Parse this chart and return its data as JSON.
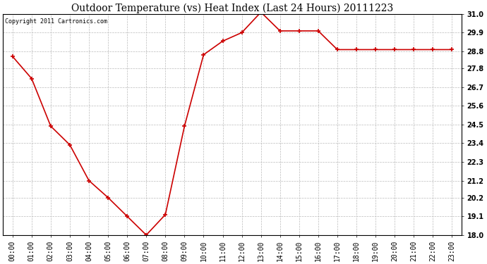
{
  "title": "Outdoor Temperature (vs) Heat Index (Last 24 Hours) 20111223",
  "copyright_text": "Copyright 2011 Cartronics.com",
  "x_labels": [
    "00:00",
    "01:00",
    "02:00",
    "03:00",
    "04:00",
    "05:00",
    "06:00",
    "07:00",
    "08:00",
    "09:00",
    "10:00",
    "11:00",
    "12:00",
    "13:00",
    "14:00",
    "15:00",
    "16:00",
    "17:00",
    "18:00",
    "19:00",
    "20:00",
    "21:00",
    "22:00",
    "23:00"
  ],
  "y_values": [
    28.5,
    27.2,
    24.4,
    23.3,
    21.2,
    20.2,
    19.1,
    18.0,
    19.2,
    24.4,
    28.6,
    29.4,
    29.9,
    31.1,
    30.0,
    30.0,
    30.0,
    28.9,
    28.9,
    28.9,
    28.9,
    28.9,
    28.9,
    28.9
  ],
  "ylim_min": 18.0,
  "ylim_max": 31.0,
  "y_ticks": [
    18.0,
    19.1,
    20.2,
    21.2,
    22.3,
    23.4,
    24.5,
    25.6,
    26.7,
    27.8,
    28.8,
    29.9,
    31.0
  ],
  "line_color": "#cc0000",
  "marker": "+",
  "marker_size": 5,
  "marker_edge_width": 1.2,
  "line_width": 1.2,
  "background_color": "#ffffff",
  "plot_bg_color": "#ffffff",
  "grid_color": "#bbbbbb",
  "title_fontsize": 10,
  "tick_fontsize": 7,
  "copyright_fontsize": 6,
  "figwidth": 6.9,
  "figheight": 3.75,
  "dpi": 100
}
